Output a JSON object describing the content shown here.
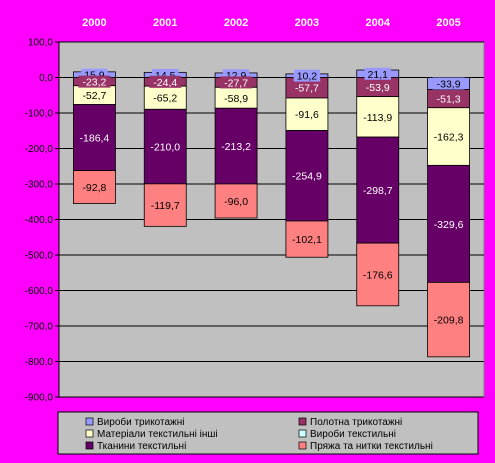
{
  "chart_data": {
    "type": "bar",
    "stacked": true,
    "categories": [
      "2000",
      "2001",
      "2002",
      "2003",
      "2004",
      "2005"
    ],
    "ylim": [
      -900,
      100
    ],
    "yticks": [
      "100,0",
      "0,0",
      "-100,0",
      "-200,0",
      "-300,0",
      "-400,0",
      "-500,0",
      "-600,0",
      "-700,0",
      "-800,0",
      "-900,0"
    ],
    "grid": true,
    "legend_position": "bottom",
    "series": [
      {
        "name": "Вироби трикотажні",
        "color": "#9999ff",
        "values": [
          15.9,
          14.5,
          12.9,
          10.2,
          21.1,
          -33.9
        ],
        "labels": [
          "15,9",
          "14,5",
          "12,9",
          "10,2",
          "21,1",
          "-33,9"
        ]
      },
      {
        "name": "Полотна трикотажні",
        "color": "#993366",
        "values": [
          -23.2,
          -24.4,
          -27.7,
          -57.7,
          -53.9,
          -51.3
        ],
        "labels": [
          "-23,2",
          "-24,4",
          "-27,7",
          "-57,7",
          "-53,9",
          "-51,3"
        ]
      },
      {
        "name": "Матеріали текстильні інші",
        "color": "#ffffcc",
        "values": [
          -52.7,
          -65.2,
          -58.9,
          -91.6,
          -113.9,
          -162.3
        ],
        "labels": [
          "-52,7",
          "-65,2",
          "-58,9",
          "-91,6",
          "-113,9",
          "-162,3"
        ]
      },
      {
        "name": "Тканини текстильні",
        "color": "#660066",
        "values": [
          -186.4,
          -210.0,
          -213.2,
          -254.9,
          -298.7,
          -329.6
        ],
        "labels": [
          "-186,4",
          "-210,0",
          "-213,2",
          "-254,9",
          "-298,7",
          "-329,6"
        ]
      },
      {
        "name": "Пряжа та нитки текстильні",
        "color": "#ff8080",
        "values": [
          -92.8,
          -119.7,
          -96.0,
          -102.1,
          -176.6,
          -209.8
        ],
        "labels": [
          "-92,8",
          "-119,7",
          "-96,0",
          "-102,1",
          "-176,6",
          "-209,8"
        ]
      }
    ],
    "legend": [
      {
        "name": "Вироби трикотажні",
        "color": "#9999ff"
      },
      {
        "name": "Полотна трикотажні",
        "color": "#993366"
      },
      {
        "name": "Матеріали текстильні інші",
        "color": "#ffffcc"
      },
      {
        "name": "Вироби текстильні",
        "color": "#ccffff"
      },
      {
        "name": "Тканини текстильні",
        "color": "#660066"
      },
      {
        "name": "Пряжа та нитки текстильні",
        "color": "#ff8080"
      }
    ],
    "colors": {
      "background": "#ff00ff",
      "plot_area": "#c0c0c0",
      "bar_outline": "#000000"
    }
  }
}
